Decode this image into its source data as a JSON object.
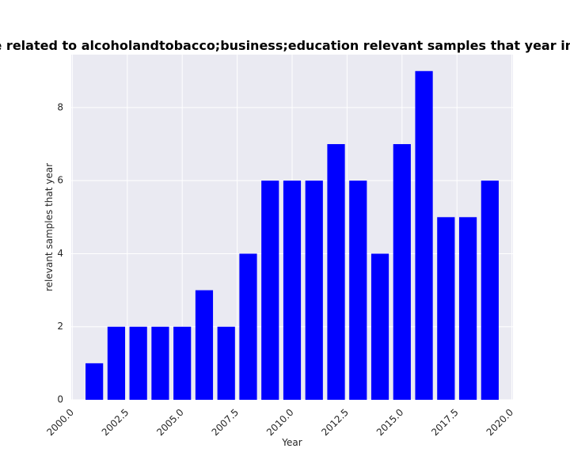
{
  "chart_data": {
    "type": "bar",
    "title": "ies are related to alcoholandtobacco;business;education relevant samples that year in privacy",
    "xlabel": "Year",
    "ylabel": "relevant samples that year",
    "x": [
      2001,
      2002,
      2003,
      2004,
      2005,
      2006,
      2007,
      2008,
      2009,
      2010,
      2011,
      2012,
      2013,
      2014,
      2015,
      2016,
      2017,
      2018,
      2019
    ],
    "values": [
      1,
      2,
      2,
      2,
      2,
      3,
      2,
      4,
      6,
      6,
      6,
      7,
      6,
      4,
      7,
      9,
      5,
      5,
      6
    ],
    "xlim": [
      1999.95,
      2020.05
    ],
    "ylim": [
      0,
      9.45
    ],
    "x_ticks": [
      2000.0,
      2002.5,
      2005.0,
      2007.5,
      2010.0,
      2012.5,
      2015.0,
      2017.5,
      2020.0
    ],
    "x_tick_labels": [
      "2000.0",
      "2002.5",
      "2005.0",
      "2007.5",
      "2010.0",
      "2012.5",
      "2015.0",
      "2017.5",
      "2020.0"
    ],
    "y_ticks": [
      0,
      2,
      4,
      6,
      8
    ],
    "y_tick_labels": [
      "0",
      "2",
      "4",
      "6",
      "8"
    ],
    "bar_color": "#0000ff",
    "background_color": "#eaeaf2",
    "grid_color": "#ffffff",
    "grid": true
  }
}
